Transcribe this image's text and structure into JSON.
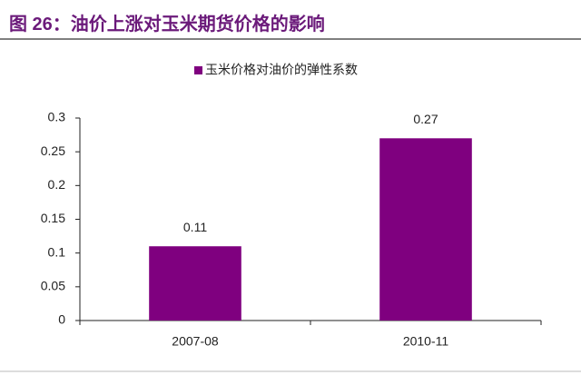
{
  "chart_data": {
    "type": "bar",
    "title": "图 26：油价上涨对玉米期货价格的影响",
    "categories": [
      "2007-08",
      "2010-11"
    ],
    "series": [
      {
        "name": "玉米价格对油价的弹性系数",
        "color": "#7f007f",
        "values": [
          0.11,
          0.27
        ]
      }
    ],
    "ylim": [
      0,
      0.3
    ],
    "yticks": [
      0,
      0.05,
      0.1,
      0.15,
      0.2,
      0.25,
      0.3
    ],
    "grid": false,
    "legend": "top"
  }
}
